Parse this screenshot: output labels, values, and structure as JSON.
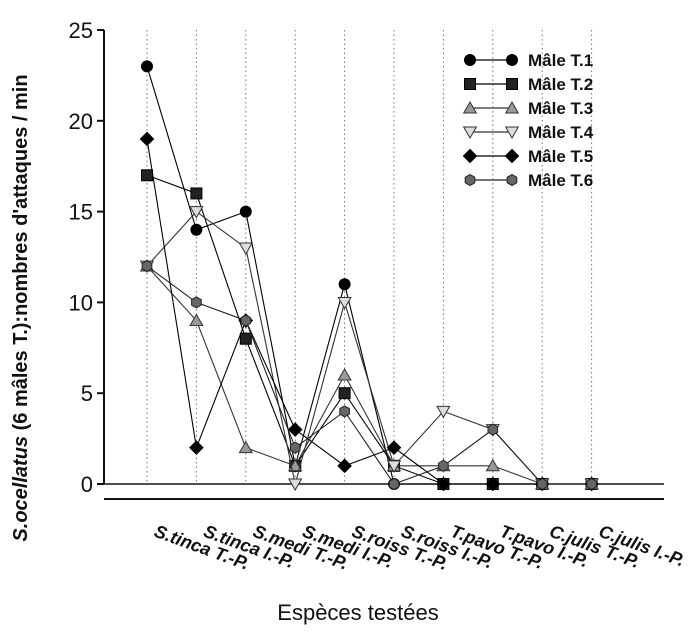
{
  "chart_data": {
    "type": "line",
    "xlabel": "Espèces testées",
    "ylabel_italic": "S.ocellatus",
    "ylabel_rest": " (6 mâles T.):nombres d'attaques / min",
    "ylim": [
      0,
      25
    ],
    "yticks": [
      "0",
      "5",
      "10",
      "15",
      "20",
      "25"
    ],
    "grid": "vertical dotted",
    "legend_position": "top-right",
    "categories": [
      "S.tinca T.-P.",
      "S.tinca I.-P.",
      "S.medi T.-P.",
      "S.medi I.-P.",
      "S.roiss T.-P.",
      "S.roiss I.-P.",
      "T.pavo T.-P.",
      "T.pavo I.-P.",
      "C.julis T.-P.",
      "C.julis I.-P."
    ],
    "series": [
      {
        "name": "Mâle T.1",
        "marker": "circle",
        "fill": "#000000",
        "line": "#000000",
        "values": [
          23,
          14,
          15,
          1,
          11,
          0,
          0,
          0,
          0,
          0
        ]
      },
      {
        "name": "Mâle T.2",
        "marker": "square",
        "fill": "#222222",
        "line": "#000000",
        "values": [
          17,
          16,
          8,
          1,
          5,
          1,
          0,
          0,
          0,
          0
        ]
      },
      {
        "name": "Mâle T.3",
        "marker": "triangle-up",
        "fill": "#999999",
        "line": "#333333",
        "values": [
          12,
          9,
          2,
          1,
          6,
          1,
          1,
          1,
          0,
          0
        ]
      },
      {
        "name": "Mâle T.4",
        "marker": "triangle-down",
        "fill": "#dddddd",
        "line": "#333333",
        "values": [
          12,
          15,
          13,
          0,
          10,
          1,
          4,
          3,
          0,
          0
        ]
      },
      {
        "name": "Mâle T.5",
        "marker": "diamond",
        "fill": "#000000",
        "line": "#000000",
        "values": [
          19,
          2,
          9,
          3,
          1,
          2,
          0,
          0,
          0,
          0
        ]
      },
      {
        "name": "Mâle T.6",
        "marker": "hexagon",
        "fill": "#666666",
        "line": "#222222",
        "values": [
          12,
          10,
          9,
          2,
          4,
          0,
          1,
          3,
          0,
          0
        ]
      }
    ]
  }
}
